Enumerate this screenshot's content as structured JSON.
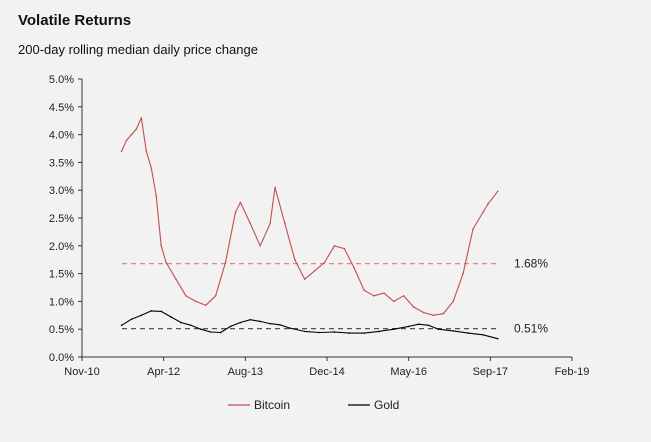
{
  "header": {
    "title": "Volatile Returns",
    "subtitle": "200-day rolling median daily price change"
  },
  "chart_data": {
    "type": "line",
    "title": "Volatile Returns",
    "subtitle": "200-day rolling median daily price change",
    "xlabel": "",
    "ylabel": "",
    "x_range": [
      "2010-11",
      "2019-02"
    ],
    "x_ticks": [
      "Nov-10",
      "Apr-12",
      "Aug-13",
      "Dec-14",
      "May-16",
      "Sep-17",
      "Feb-19"
    ],
    "ylim": [
      0,
      5.0
    ],
    "y_ticks": [
      "0.0%",
      "0.5%",
      "1.0%",
      "1.5%",
      "2.0%",
      "2.5%",
      "3.0%",
      "3.5%",
      "4.0%",
      "4.5%",
      "5.0%"
    ],
    "grid": false,
    "legend_position": "bottom",
    "series": [
      {
        "name": "Bitcoin",
        "color": "#c0504d",
        "points": [
          [
            "2011-07",
            3.7
          ],
          [
            "2011-08",
            3.9
          ],
          [
            "2011-09",
            4.0
          ],
          [
            "2011-10",
            4.1
          ],
          [
            "2011-11",
            4.3
          ],
          [
            "2011-12",
            3.7
          ],
          [
            "2012-01",
            3.4
          ],
          [
            "2012-02",
            2.9
          ],
          [
            "2012-03",
            2.0
          ],
          [
            "2012-04",
            1.7
          ],
          [
            "2012-06",
            1.4
          ],
          [
            "2012-08",
            1.1
          ],
          [
            "2012-10",
            1.0
          ],
          [
            "2012-12",
            0.93
          ],
          [
            "2013-02",
            1.1
          ],
          [
            "2013-04",
            1.7
          ],
          [
            "2013-06",
            2.6
          ],
          [
            "2013-07",
            2.78
          ],
          [
            "2013-09",
            2.4
          ],
          [
            "2013-11",
            2.0
          ],
          [
            "2014-01",
            2.4
          ],
          [
            "2014-02",
            3.05
          ],
          [
            "2014-04",
            2.4
          ],
          [
            "2014-06",
            1.75
          ],
          [
            "2014-08",
            1.4
          ],
          [
            "2014-10",
            1.55
          ],
          [
            "2014-12",
            1.7
          ],
          [
            "2015-02",
            2.0
          ],
          [
            "2015-04",
            1.95
          ],
          [
            "2015-06",
            1.6
          ],
          [
            "2015-08",
            1.2
          ],
          [
            "2015-10",
            1.1
          ],
          [
            "2015-12",
            1.15
          ],
          [
            "2016-02",
            1.0
          ],
          [
            "2016-04",
            1.1
          ],
          [
            "2016-06",
            0.9
          ],
          [
            "2016-08",
            0.8
          ],
          [
            "2016-10",
            0.75
          ],
          [
            "2016-12",
            0.78
          ],
          [
            "2017-02",
            1.0
          ],
          [
            "2017-04",
            1.5
          ],
          [
            "2017-06",
            2.3
          ],
          [
            "2017-08",
            2.6
          ],
          [
            "2017-09",
            2.75
          ],
          [
            "2017-11",
            2.98
          ]
        ]
      },
      {
        "name": "Gold",
        "color": "#000000",
        "points": [
          [
            "2011-07",
            0.57
          ],
          [
            "2011-09",
            0.68
          ],
          [
            "2011-11",
            0.75
          ],
          [
            "2012-01",
            0.83
          ],
          [
            "2012-03",
            0.82
          ],
          [
            "2012-05",
            0.72
          ],
          [
            "2012-07",
            0.62
          ],
          [
            "2012-09",
            0.57
          ],
          [
            "2012-11",
            0.5
          ],
          [
            "2013-01",
            0.45
          ],
          [
            "2013-03",
            0.44
          ],
          [
            "2013-05",
            0.55
          ],
          [
            "2013-07",
            0.62
          ],
          [
            "2013-09",
            0.67
          ],
          [
            "2013-11",
            0.64
          ],
          [
            "2014-01",
            0.6
          ],
          [
            "2014-03",
            0.58
          ],
          [
            "2014-05",
            0.52
          ],
          [
            "2014-08",
            0.46
          ],
          [
            "2014-11",
            0.44
          ],
          [
            "2015-02",
            0.45
          ],
          [
            "2015-05",
            0.43
          ],
          [
            "2015-08",
            0.43
          ],
          [
            "2015-11",
            0.46
          ],
          [
            "2016-02",
            0.5
          ],
          [
            "2016-05",
            0.55
          ],
          [
            "2016-07",
            0.59
          ],
          [
            "2016-09",
            0.57
          ],
          [
            "2016-11",
            0.5
          ],
          [
            "2017-02",
            0.47
          ],
          [
            "2017-05",
            0.43
          ],
          [
            "2017-08",
            0.4
          ],
          [
            "2017-11",
            0.33
          ]
        ]
      }
    ],
    "reference_lines": [
      {
        "value": 1.68,
        "label": "1.68%",
        "color": "#e0857a",
        "style": "dashed"
      },
      {
        "value": 0.51,
        "label": "0.51%",
        "color": "#555555",
        "style": "dashed"
      }
    ]
  }
}
